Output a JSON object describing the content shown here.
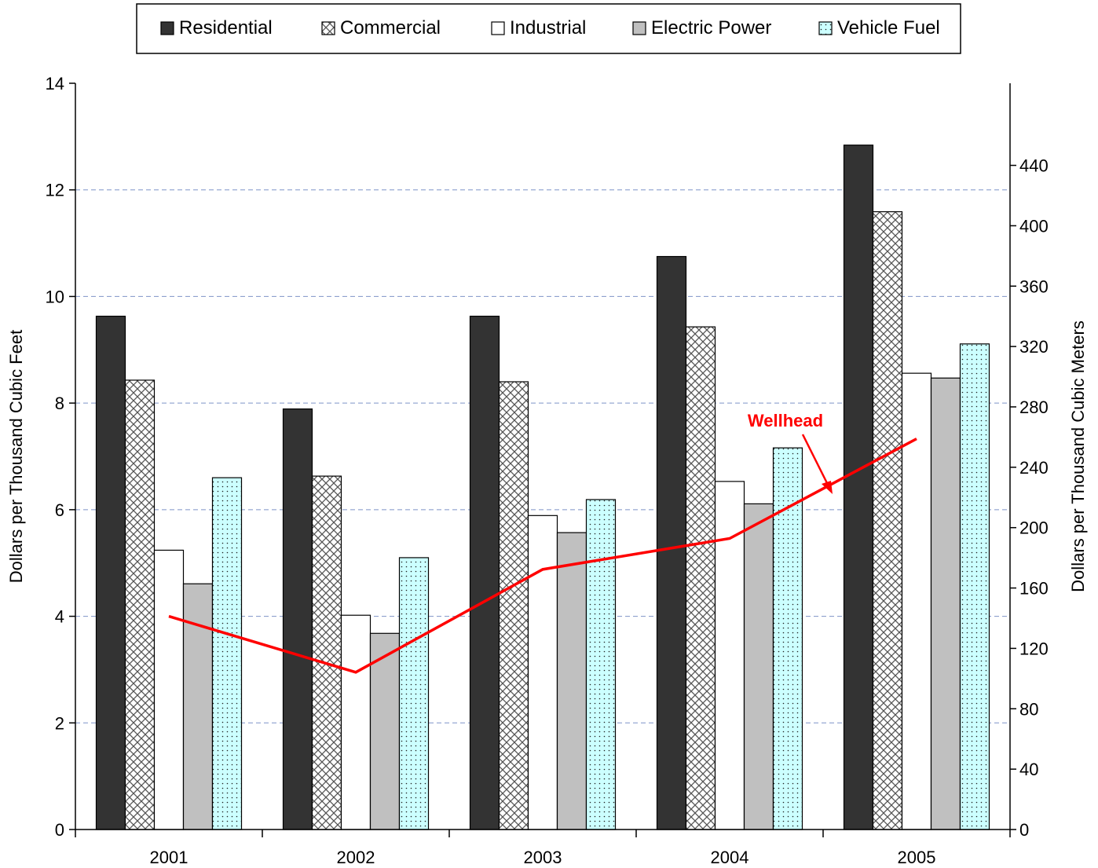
{
  "chart_data": {
    "type": "bar",
    "title": "",
    "categories": [
      "2001",
      "2002",
      "2003",
      "2004",
      "2005"
    ],
    "series": [
      {
        "name": "Residential",
        "values": [
          9.63,
          7.89,
          9.63,
          10.75,
          12.84
        ],
        "color": "#333333",
        "pattern": "solid"
      },
      {
        "name": "Commercial",
        "values": [
          8.43,
          6.63,
          8.4,
          9.43,
          11.59
        ],
        "color": "#ffffff",
        "pattern": "crosshatch"
      },
      {
        "name": "Industrial",
        "values": [
          5.24,
          4.02,
          5.89,
          6.53,
          8.56
        ],
        "color": "#ffffff",
        "pattern": "none"
      },
      {
        "name": "Electric Power",
        "values": [
          4.61,
          3.68,
          5.57,
          6.11,
          8.47
        ],
        "color": "#c0c0c0",
        "pattern": "solid"
      },
      {
        "name": "Vehicle Fuel",
        "values": [
          6.6,
          5.1,
          6.19,
          7.16,
          9.11
        ],
        "color": "#ccffff",
        "pattern": "dots"
      }
    ],
    "line_series": {
      "name": "Wellhead",
      "values": [
        4.0,
        2.95,
        4.88,
        5.46,
        7.33
      ],
      "color": "#ff0000"
    },
    "annotation": "Wellhead",
    "ylabel": "Dollars per Thousand Cubic Feet",
    "ylabel_right": "Dollars per Thousand Cubic Meters",
    "ylim": [
      0,
      14
    ],
    "yticks": [
      "0",
      "2",
      "4",
      "6",
      "8",
      "10",
      "12",
      "14"
    ],
    "ylim_right": [
      0,
      494.4
    ],
    "yticks_right": [
      "0",
      "40",
      "80",
      "120",
      "160",
      "200",
      "240",
      "280",
      "320",
      "360",
      "400",
      "440"
    ],
    "grid": true,
    "legend_position": "top"
  }
}
